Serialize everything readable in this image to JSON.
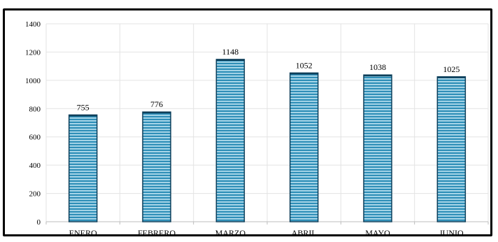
{
  "chart_data": {
    "type": "bar",
    "categories": [
      "ENERO",
      "FEBRERO",
      "MARZO",
      "ABRIL",
      "MAYO",
      "JUNIO"
    ],
    "values": [
      755,
      776,
      1148,
      1052,
      1038,
      1025
    ],
    "data_labels": [
      "755",
      "776",
      "1148",
      "1052",
      "1038",
      "1025"
    ],
    "y_ticks": [
      "0",
      "200",
      "400",
      "600",
      "800",
      "1000",
      "1200",
      "1400"
    ],
    "ylim": [
      0,
      1400
    ],
    "grid": true,
    "legend": "none",
    "bar_color": "#2f8fb8",
    "bar_stripe_color": "#bfe3f2",
    "bar_edge_color": "#0d3f5a"
  }
}
